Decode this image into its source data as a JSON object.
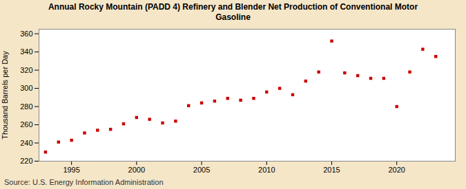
{
  "chart_data": {
    "type": "scatter",
    "title": "Annual Rocky Mountain (PADD 4) Refinery and Blender Net Production of Conventional Motor\nGasoline",
    "ylabel": "Thousand Barrels per Day",
    "source": "Source: U.S. Energy Information Administration",
    "x": [
      1993,
      1994,
      1995,
      1996,
      1997,
      1998,
      1999,
      2000,
      2001,
      2002,
      2003,
      2004,
      2005,
      2006,
      2007,
      2008,
      2009,
      2010,
      2011,
      2012,
      2013,
      2014,
      2015,
      2016,
      2017,
      2018,
      2019,
      2020,
      2021,
      2022,
      2023
    ],
    "values": [
      230,
      241,
      243,
      251,
      254,
      255,
      261,
      268,
      266,
      262,
      264,
      281,
      284,
      286,
      289,
      287,
      289,
      296,
      300,
      293,
      308,
      318,
      352,
      317,
      314,
      311,
      311,
      280,
      318,
      343,
      335
    ],
    "color": "#cc0000",
    "marker": "square",
    "xlim": [
      1992.5,
      2024.5
    ],
    "xticks": [
      1995,
      2000,
      2005,
      2010,
      2015,
      2020
    ],
    "ylim": [
      220,
      365
    ],
    "yticks": [
      220,
      240,
      260,
      280,
      300,
      320,
      340,
      360
    ],
    "grid": true
  }
}
